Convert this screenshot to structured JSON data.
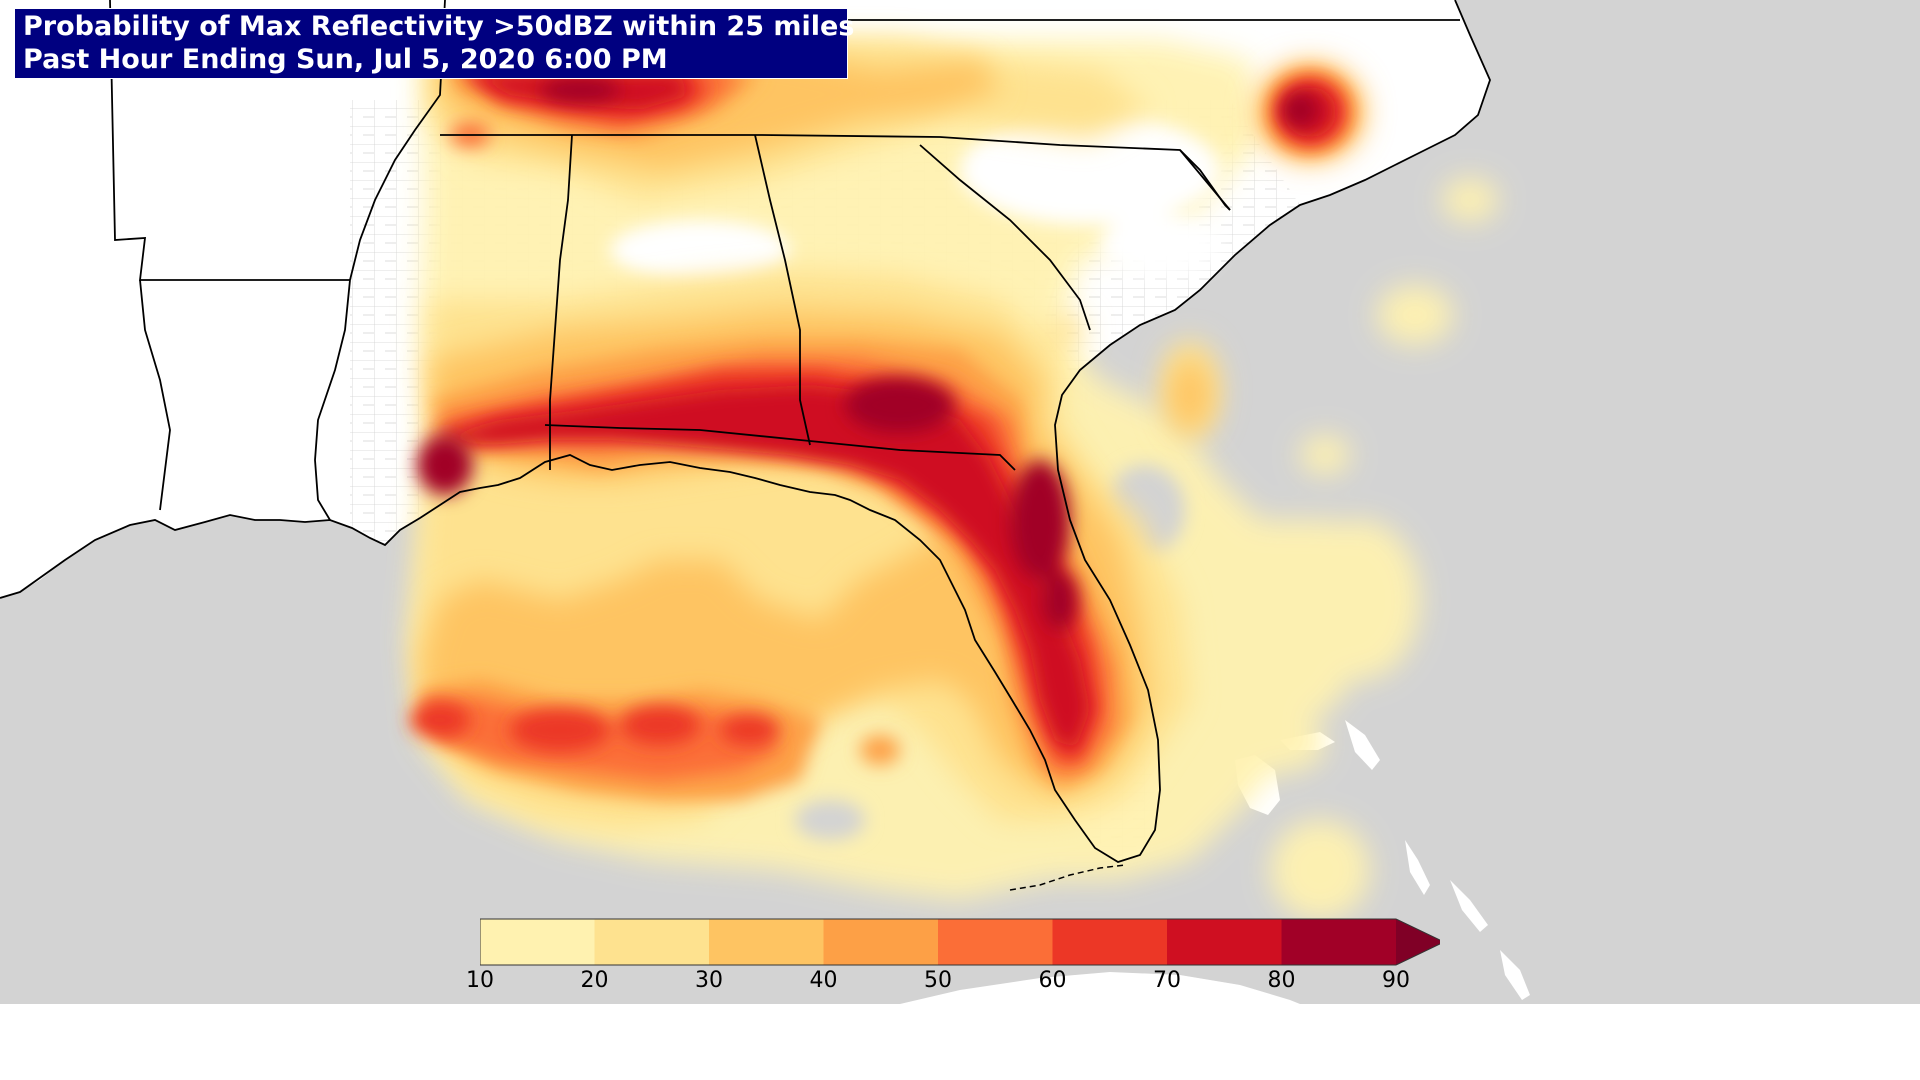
{
  "title": {
    "line1": "Probability of Max Reflectivity >50dBZ within 25 miles",
    "line2": "Past Hour Ending Sun, Jul 5, 2020 6:00 PM"
  },
  "colors": {
    "water": "#d3d3d3",
    "land": "#ffffff",
    "title_bg": "#000080",
    "title_text": "#ffffff",
    "borders": "#000000",
    "county_lines": "#cccccc"
  },
  "legend": {
    "type": "colorbar",
    "orientation": "horizontal",
    "placement": "bottom-center",
    "extend": "max",
    "ticks": [
      "10",
      "20",
      "30",
      "40",
      "50",
      "60",
      "70",
      "80",
      "90"
    ],
    "bins": [
      {
        "min": 10,
        "max": 20,
        "color": "#fff2b0"
      },
      {
        "min": 20,
        "max": 30,
        "color": "#fee28f"
      },
      {
        "min": 30,
        "max": 40,
        "color": "#fec462"
      },
      {
        "min": 40,
        "max": 50,
        "color": "#fda046"
      },
      {
        "min": 50,
        "max": 60,
        "color": "#fb6e37"
      },
      {
        "min": 60,
        "max": 70,
        "color": "#ec3726"
      },
      {
        "min": 70,
        "max": 80,
        "color": "#cf0f21"
      },
      {
        "min": 80,
        "max": 90,
        "color": "#a10027"
      },
      {
        "min": 90,
        "max": null,
        "color": "#800026"
      }
    ]
  },
  "map": {
    "region": "Southeastern United States",
    "projection": "Lambert Conformal"
  }
}
